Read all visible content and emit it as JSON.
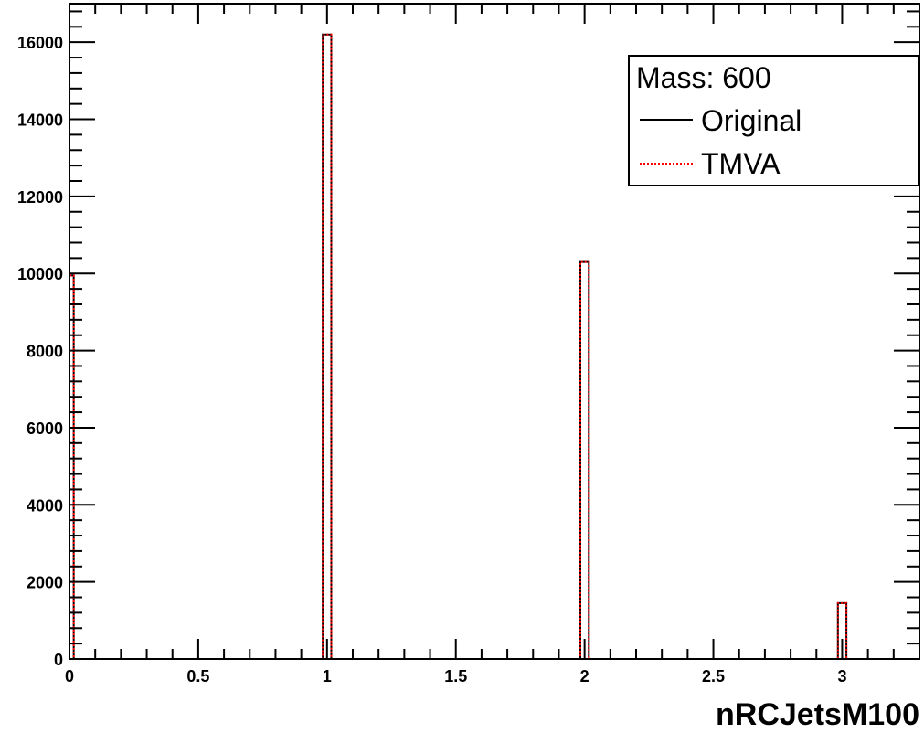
{
  "chart_data": {
    "type": "histogram",
    "title": "",
    "xlabel": "nRCJetsM100",
    "ylabel": "",
    "xlim": [
      0,
      3.3
    ],
    "ylim": [
      0,
      17000
    ],
    "bin_width": 0.033,
    "x_ticks": [
      "0",
      "0.5",
      "1",
      "1.5",
      "2",
      "2.5",
      "3"
    ],
    "x_tick_values": [
      0,
      0.5,
      1,
      1.5,
      2,
      2.5,
      3
    ],
    "y_ticks": [
      "0",
      "2000",
      "4000",
      "6000",
      "8000",
      "10000",
      "12000",
      "14000",
      "16000"
    ],
    "y_tick_values": [
      0,
      2000,
      4000,
      6000,
      8000,
      10000,
      12000,
      14000,
      16000
    ],
    "legend": {
      "header": "Mass: 600",
      "position": "top-right",
      "entries": [
        {
          "label": "Original",
          "color": "#000000",
          "style": "solid"
        },
        {
          "label": "TMVA",
          "color": "#ff0000",
          "style": "dotted"
        }
      ]
    },
    "series": [
      {
        "name": "Original",
        "color": "#000000",
        "bins": [
          {
            "x": 0,
            "value": 9950
          },
          {
            "x": 1,
            "value": 16200
          },
          {
            "x": 2,
            "value": 10300
          },
          {
            "x": 3,
            "value": 1450
          }
        ]
      },
      {
        "name": "TMVA",
        "color": "#ff0000",
        "bins": [
          {
            "x": 0,
            "value": 9950
          },
          {
            "x": 1,
            "value": 16200
          },
          {
            "x": 2,
            "value": 10300
          },
          {
            "x": 3,
            "value": 1450
          }
        ]
      }
    ]
  }
}
